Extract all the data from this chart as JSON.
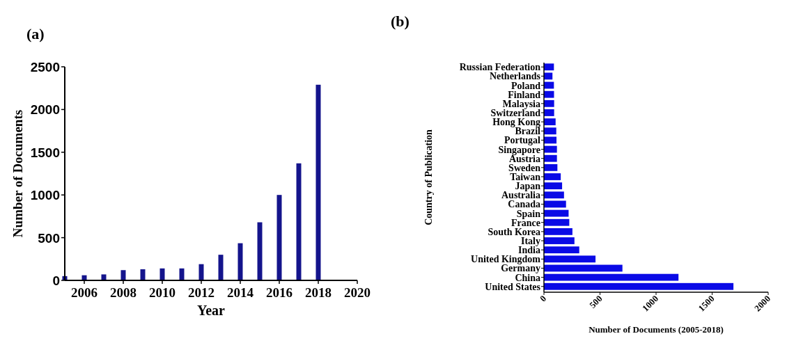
{
  "chart_data": [
    {
      "type": "bar",
      "title": "(a)",
      "xlabel": "Year",
      "ylabel": "Number of Documents",
      "x": [
        2005,
        2006,
        2007,
        2008,
        2009,
        2010,
        2011,
        2012,
        2013,
        2014,
        2015,
        2016,
        2017,
        2018
      ],
      "values": [
        50,
        60,
        70,
        120,
        130,
        140,
        140,
        190,
        300,
        435,
        680,
        1000,
        1370,
        2290
      ],
      "color": "#14148c",
      "xlim": [
        2005,
        2020
      ],
      "xticks": [
        2006,
        2008,
        2010,
        2012,
        2014,
        2016,
        2018,
        2020
      ],
      "ylim": [
        0,
        2500
      ],
      "yticks": [
        0,
        500,
        1000,
        1500,
        2000,
        2500
      ]
    },
    {
      "type": "bar",
      "orientation": "horizontal",
      "title": "(b)",
      "xlabel": "Number of Documents (2005-2018)",
      "ylabel": "Country of Publication",
      "categories": [
        "Russian Federation",
        "Netherlands",
        "Poland",
        "Finland",
        "Malaysia",
        "Switzerland",
        "Hong Kong",
        "Brazil",
        "Portugal",
        "Singapore",
        "Austria",
        "Sweden",
        "Taiwan",
        "Japan",
        "Australia",
        "Canada",
        "Spain",
        "France",
        "South Korea",
        "Italy",
        "India",
        "United Kingdom",
        "Germany",
        "China",
        "United States"
      ],
      "values": [
        89,
        76,
        89,
        90,
        91,
        91,
        104,
        110,
        112,
        116,
        116,
        120,
        150,
        162,
        179,
        197,
        220,
        226,
        254,
        272,
        315,
        460,
        700,
        1200,
        1690
      ],
      "color": "#0a0ae6",
      "xlim": [
        0,
        2000
      ],
      "xticks": [
        0,
        500,
        1000,
        1500,
        2000
      ]
    }
  ]
}
